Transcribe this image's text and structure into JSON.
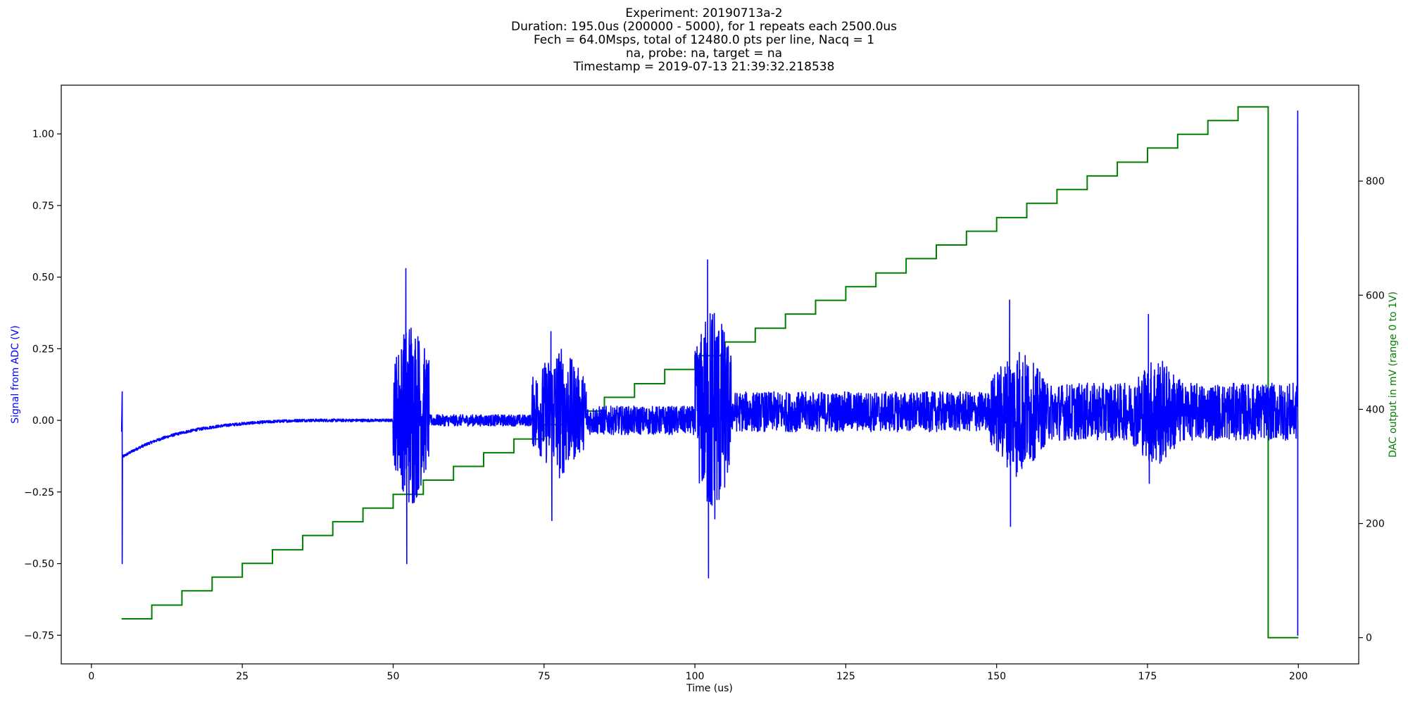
{
  "chart_data": {
    "type": "line",
    "title_lines": [
      "Experiment: 20190713a-2",
      "Duration: 195.0us (200000 - 5000), for 1 repeats each 2500.0us",
      "Fech = 64.0Msps, total of 12480.0 pts per line, Nacq = 1",
      "na, probe: na, target = na",
      "Timestamp = 2019-07-13 21:39:32.218538"
    ],
    "xlabel": "Time (us)",
    "ylabel_left": "Signal from ADC (V)",
    "ylabel_right": "DAC output in mV (range 0 to 1V)",
    "xlim": [
      -5,
      210
    ],
    "ylim_left": [
      -0.85,
      1.17
    ],
    "ylim_right": [
      -46,
      968
    ],
    "x_ticks": [
      0,
      25,
      50,
      75,
      100,
      125,
      150,
      175,
      200
    ],
    "x_tick_labels": [
      "0",
      "25",
      "50",
      "75",
      "100",
      "125",
      "150",
      "175",
      "200"
    ],
    "y_left_ticks": [
      -0.75,
      -0.5,
      -0.25,
      0.0,
      0.25,
      0.5,
      0.75,
      1.0
    ],
    "y_left_tick_labels": [
      "−0.75",
      "−0.50",
      "−0.25",
      "0.00",
      "0.25",
      "0.50",
      "0.75",
      "1.00"
    ],
    "y_right_ticks": [
      0,
      200,
      400,
      600,
      800
    ],
    "y_right_tick_labels": [
      "0",
      "200",
      "400",
      "600",
      "800"
    ],
    "grid": false,
    "colors": {
      "signal": "#0000ff",
      "dac": "#008000",
      "axes": "#000000"
    },
    "series": [
      {
        "axis": "left",
        "color": "#0000ff",
        "shape": "noisy ADC trace",
        "x_start": 5,
        "x_end": 200,
        "initial_spike": [
          5.1,
          0.1,
          -0.5
        ],
        "baseline_start": -0.13,
        "baseline_recover_to": 0.0,
        "recover_by_x": 35,
        "segments": [
          {
            "x": [
              5,
              50
            ],
            "amplitude": 0.005
          },
          {
            "x": [
              50,
              56
            ],
            "amplitude": 0.3,
            "peaks": [
              0.53,
              -0.5
            ]
          },
          {
            "x": [
              56,
              73
            ],
            "amplitude": 0.02
          },
          {
            "x": [
              73,
              82
            ],
            "amplitude": 0.2,
            "peaks": [
              0.31,
              -0.35
            ]
          },
          {
            "x": [
              82,
              100
            ],
            "amplitude": 0.05
          },
          {
            "x": [
              100,
              106
            ],
            "amplitude": 0.35,
            "peaks": [
              0.56,
              -0.55
            ]
          },
          {
            "x": [
              106,
              149
            ],
            "amplitude": 0.07
          },
          {
            "x": [
              149,
              158
            ],
            "amplitude": 0.2,
            "peaks": [
              0.42,
              -0.37
            ]
          },
          {
            "x": [
              158,
              172
            ],
            "amplitude": 0.1
          },
          {
            "x": [
              172,
              181
            ],
            "amplitude": 0.17,
            "peaks": [
              0.37,
              -0.22
            ]
          },
          {
            "x": [
              181,
              200
            ],
            "amplitude": 0.1
          }
        ],
        "final_spike": [
          199.9,
          1.08,
          -0.75
        ]
      },
      {
        "axis": "right",
        "color": "#008000",
        "shape": "staircase",
        "step_x": [
          5,
          10,
          15,
          20,
          25,
          30,
          35,
          40,
          45,
          50,
          55,
          60,
          65,
          70,
          75,
          80,
          85,
          90,
          95,
          100,
          105,
          110,
          115,
          120,
          125,
          130,
          135,
          140,
          145,
          150,
          155,
          160,
          165,
          170,
          175,
          180,
          185,
          190,
          195,
          200
        ],
        "step_y": [
          33,
          57,
          82,
          106,
          130,
          154,
          179,
          203,
          227,
          251,
          276,
          300,
          324,
          348,
          373,
          397,
          421,
          445,
          470,
          494,
          518,
          542,
          567,
          591,
          615,
          639,
          664,
          688,
          712,
          736,
          761,
          785,
          809,
          833,
          858,
          882,
          906,
          930,
          0,
          0
        ]
      }
    ]
  }
}
